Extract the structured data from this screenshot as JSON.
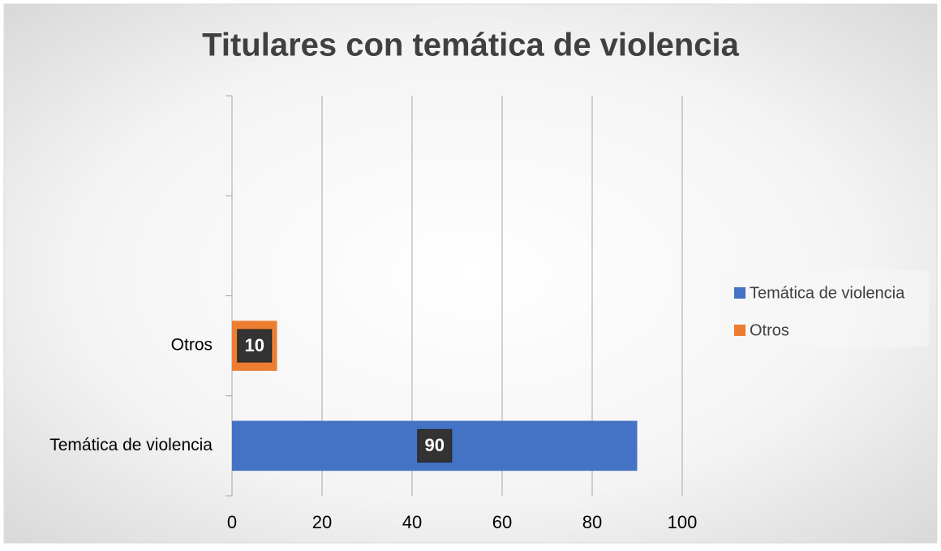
{
  "chart_data": {
    "type": "barh",
    "title": "Titulares con temática de violencia",
    "categories": [
      "Temática de violencia",
      "Otros",
      null,
      null
    ],
    "series": [
      {
        "name": "Temática de violencia",
        "color": "#4472c4",
        "values": [
          90,
          null,
          null,
          null
        ]
      },
      {
        "name": "Otros",
        "color": "#ed7d31",
        "values": [
          null,
          10,
          null,
          null
        ]
      }
    ],
    "xlim": [
      0,
      100
    ],
    "xticks": [
      0,
      20,
      40,
      60,
      80,
      100
    ],
    "grid": true,
    "legend": "right"
  }
}
